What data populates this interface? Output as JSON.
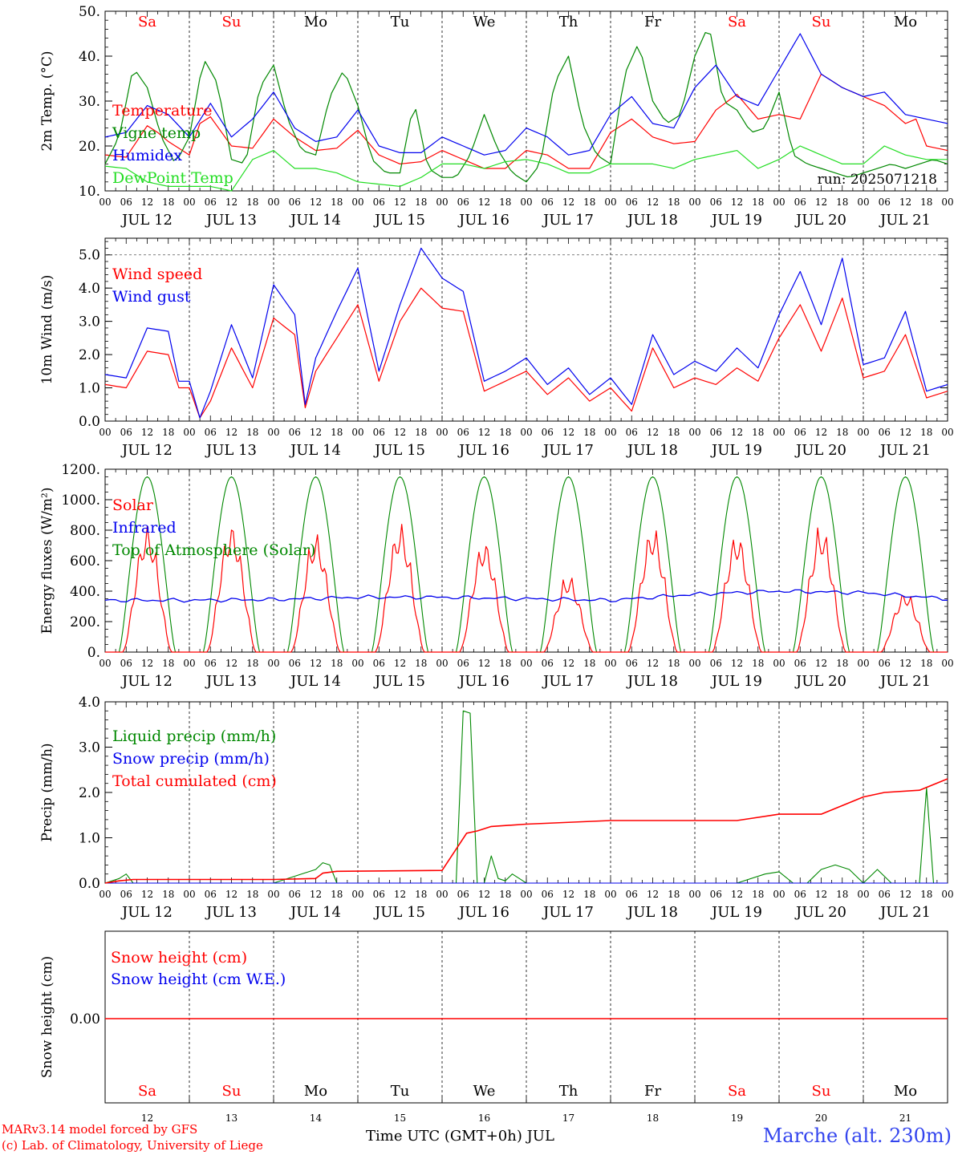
{
  "footer": {
    "credit1": "MARv3.14 model forced by GFS",
    "credit2": "(c) Lab. of Climatology, University of Liege",
    "xlabel": "Time UTC (GMT+0h) JUL",
    "location": "Marche (alt. 230m)"
  },
  "colors": {
    "red": "#ff0000",
    "green": "#008800",
    "blue": "#0000ee",
    "lime": "#22dd22",
    "location": "#3344ee"
  },
  "days": [
    {
      "abbr": "Sa",
      "date": "JUL 12",
      "num": "12",
      "weekend": true
    },
    {
      "abbr": "Su",
      "date": "JUL 13",
      "num": "13",
      "weekend": true
    },
    {
      "abbr": "Mo",
      "date": "JUL 14",
      "num": "14",
      "weekend": false
    },
    {
      "abbr": "Tu",
      "date": "JUL 15",
      "num": "15",
      "weekend": false
    },
    {
      "abbr": "We",
      "date": "JUL 16",
      "num": "16",
      "weekend": false
    },
    {
      "abbr": "Th",
      "date": "JUL 17",
      "num": "17",
      "weekend": false
    },
    {
      "abbr": "Fr",
      "date": "JUL 18",
      "num": "18",
      "weekend": false
    },
    {
      "abbr": "Sa",
      "date": "JUL 19",
      "num": "19",
      "weekend": true
    },
    {
      "abbr": "Su",
      "date": "JUL 20",
      "num": "20",
      "weekend": true
    },
    {
      "abbr": "Mo",
      "date": "JUL 21",
      "num": "21",
      "weekend": false
    }
  ],
  "hour_labels": [
    "00",
    "06",
    "12",
    "18"
  ],
  "chart_data": [
    {
      "type": "line",
      "ylabel": "2m Temp. (°C)",
      "ylim": [
        10,
        50
      ],
      "yticks": [
        "10.",
        "20.",
        "30.",
        "40.",
        "50."
      ],
      "annotation": "run: 2025071218",
      "x_unit": "hours since JUL 12 00 UTC",
      "series": [
        {
          "name": "Temperature",
          "color": "red",
          "x": [
            0,
            6,
            12,
            15,
            18,
            24,
            27,
            30,
            36,
            42,
            48,
            54,
            60,
            66,
            72,
            78,
            84,
            90,
            96,
            102,
            108,
            114,
            120,
            126,
            132,
            138,
            144,
            150,
            156,
            162,
            168,
            174,
            180,
            186,
            192,
            198,
            204,
            210,
            216,
            222,
            228,
            231,
            234,
            240
          ],
          "y": [
            18,
            17.5,
            24.5,
            23,
            21,
            18,
            25,
            26.5,
            20,
            19.5,
            26,
            22,
            19,
            19.5,
            23.5,
            18,
            16,
            16.5,
            19,
            17,
            15,
            15,
            19,
            18,
            15,
            15,
            23,
            26,
            22,
            20.5,
            21,
            28,
            31.5,
            26,
            27,
            26,
            36,
            33,
            31,
            29,
            25,
            26,
            20,
            19
          ]
        },
        {
          "name": "Vigne temp",
          "color": "green",
          "x": [
            0,
            4,
            8,
            12,
            16,
            20,
            24,
            28,
            32,
            36,
            40,
            44,
            48,
            52,
            56,
            60,
            64,
            68,
            72,
            76,
            80,
            84,
            88,
            92,
            96,
            100,
            104,
            108,
            112,
            116,
            120,
            124,
            128,
            132,
            136,
            140,
            144,
            148,
            152,
            156,
            160,
            164,
            168,
            172,
            176,
            180,
            184,
            188,
            192,
            196,
            200,
            204,
            208,
            212,
            216,
            220,
            224,
            228,
            232,
            236,
            240
          ],
          "y": [
            16,
            22,
            37.5,
            33,
            22,
            16,
            22,
            39.5,
            34,
            17,
            16,
            33,
            38,
            26,
            19,
            18,
            31,
            37,
            29,
            17,
            14,
            14,
            30,
            15,
            13,
            13,
            18,
            27,
            19,
            14,
            12,
            16,
            34,
            40,
            25,
            18,
            16,
            36,
            43,
            30,
            25,
            27,
            40,
            47,
            30,
            28,
            23,
            24,
            32,
            18,
            16,
            15,
            14,
            13,
            14,
            15,
            16,
            15,
            16,
            17,
            16
          ]
        },
        {
          "name": "Humidex",
          "color": "blue",
          "x": [
            0,
            6,
            12,
            18,
            24,
            30,
            36,
            42,
            48,
            54,
            60,
            66,
            72,
            78,
            84,
            90,
            96,
            102,
            108,
            114,
            120,
            126,
            132,
            138,
            144,
            150,
            156,
            162,
            168,
            174,
            180,
            186,
            192,
            198,
            204,
            210,
            216,
            222,
            228,
            234,
            240
          ],
          "y": [
            22,
            23,
            29,
            27,
            22,
            29.5,
            22,
            26,
            32,
            24,
            21,
            22,
            28,
            20,
            18.5,
            18.5,
            22,
            20,
            18,
            19,
            24,
            22,
            18,
            19,
            27,
            31,
            25,
            24,
            33,
            38,
            31,
            29,
            37,
            45,
            36,
            33,
            31,
            32,
            27,
            26,
            25
          ]
        },
        {
          "name": "DewPoint Temp",
          "color": "lime",
          "x": [
            0,
            6,
            12,
            18,
            24,
            30,
            36,
            42,
            48,
            54,
            60,
            66,
            72,
            78,
            84,
            90,
            96,
            102,
            108,
            114,
            120,
            126,
            132,
            138,
            144,
            150,
            156,
            162,
            168,
            174,
            180,
            186,
            192,
            198,
            204,
            210,
            216,
            222,
            228,
            234,
            240
          ],
          "y": [
            15.5,
            15,
            12,
            11,
            11,
            11,
            10,
            17,
            19,
            15,
            15,
            14,
            12,
            11.5,
            11,
            13,
            16,
            16,
            15,
            16.5,
            17,
            16,
            14,
            14,
            16,
            16,
            16,
            15,
            17,
            18,
            19,
            15,
            17,
            20,
            18,
            16,
            16,
            20,
            18,
            17,
            17
          ]
        }
      ]
    },
    {
      "type": "line",
      "ylabel": "10m Wind (m/s)",
      "ylim": [
        0,
        5.5
      ],
      "yticks": [
        "0.0",
        "1.0",
        "2.0",
        "3.0",
        "4.0",
        "5.0"
      ],
      "series": [
        {
          "name": "Wind speed",
          "color": "red",
          "x": [
            0,
            6,
            12,
            18,
            21,
            24,
            27,
            30,
            36,
            42,
            48,
            54,
            57,
            60,
            66,
            72,
            78,
            84,
            90,
            96,
            102,
            108,
            114,
            120,
            126,
            132,
            138,
            144,
            150,
            156,
            162,
            168,
            174,
            180,
            186,
            192,
            198,
            204,
            210,
            216,
            222,
            228,
            234,
            240
          ],
          "y": [
            1.1,
            1.0,
            2.1,
            2.0,
            1.0,
            1.0,
            0.1,
            0.6,
            2.2,
            1.0,
            3.1,
            2.6,
            0.4,
            1.5,
            2.5,
            3.5,
            1.2,
            3.0,
            4.0,
            3.4,
            3.3,
            0.9,
            1.2,
            1.5,
            0.8,
            1.3,
            0.6,
            1.0,
            0.3,
            2.2,
            1.0,
            1.3,
            1.1,
            1.6,
            1.2,
            2.5,
            3.5,
            2.1,
            3.7,
            1.3,
            1.5,
            2.6,
            0.7,
            0.9
          ]
        },
        {
          "name": "Wind gust",
          "color": "blue",
          "x": [
            0,
            6,
            12,
            18,
            21,
            24,
            27,
            30,
            36,
            42,
            48,
            54,
            57,
            60,
            66,
            72,
            78,
            84,
            90,
            96,
            102,
            108,
            114,
            120,
            126,
            132,
            138,
            144,
            150,
            156,
            162,
            168,
            174,
            180,
            186,
            192,
            198,
            204,
            210,
            216,
            222,
            228,
            234,
            240
          ],
          "y": [
            1.4,
            1.3,
            2.8,
            2.7,
            1.2,
            1.2,
            0.1,
            0.9,
            2.9,
            1.3,
            4.1,
            3.2,
            0.5,
            1.9,
            3.3,
            4.6,
            1.5,
            3.5,
            5.2,
            4.3,
            3.9,
            1.2,
            1.5,
            1.9,
            1.1,
            1.6,
            0.8,
            1.3,
            0.5,
            2.6,
            1.4,
            1.8,
            1.5,
            2.2,
            1.6,
            3.2,
            4.5,
            2.9,
            4.9,
            1.7,
            1.9,
            3.3,
            0.9,
            1.1
          ]
        }
      ]
    },
    {
      "type": "line",
      "ylabel": "Energy fluxes (W/m²)",
      "ylim": [
        0,
        1200
      ],
      "yticks": [
        "0.",
        "200.",
        "400.",
        "600.",
        "800.",
        "1000.",
        "1200."
      ],
      "series": [
        {
          "name": "Solar",
          "color": "red",
          "peaks": [
            850,
            870,
            800,
            870,
            760,
            520,
            850,
            810,
            850,
            410
          ]
        },
        {
          "name": "Infrared",
          "color": "blue",
          "x": [
            0,
            24,
            48,
            72,
            96,
            120,
            144,
            168,
            192,
            216,
            240
          ],
          "y": [
            340,
            340,
            345,
            360,
            360,
            350,
            340,
            380,
            400,
            390,
            350
          ]
        },
        {
          "name": "Top of Atmosphere (Solar)",
          "color": "green",
          "peak": 1150
        }
      ]
    },
    {
      "type": "line",
      "ylabel": "Precip (mm/h)",
      "ylim": [
        0,
        4
      ],
      "yticks": [
        "0.0",
        "1.0",
        "2.0",
        "3.0",
        "4.0"
      ],
      "series": [
        {
          "name": "Liquid precip (mm/h)",
          "color": "green",
          "x": [
            0,
            4,
            6,
            8,
            10,
            24,
            48,
            60,
            62,
            64,
            66,
            96,
            100,
            102,
            104,
            106,
            108,
            110,
            112,
            114,
            116,
            118,
            120,
            144,
            180,
            188,
            192,
            196,
            200,
            204,
            208,
            212,
            216,
            220,
            224,
            232,
            234,
            236,
            240
          ],
          "y": [
            0,
            0.1,
            0.2,
            0,
            0,
            0,
            0,
            0.3,
            0.45,
            0.4,
            0,
            0,
            0,
            3.8,
            3.75,
            0,
            0,
            0.6,
            0.1,
            0.05,
            0.2,
            0.1,
            0,
            0,
            0,
            0.2,
            0.25,
            0,
            0,
            0.3,
            0.4,
            0.3,
            0,
            0.3,
            0,
            0,
            2.1,
            0,
            0
          ]
        },
        {
          "name": "Snow precip (mm/h)",
          "color": "blue",
          "x": [
            0,
            240
          ],
          "y": [
            0,
            0
          ]
        },
        {
          "name": "Total cumulated (cm)",
          "color": "red",
          "x": [
            0,
            4,
            8,
            24,
            48,
            60,
            62,
            66,
            96,
            103,
            106,
            110,
            120,
            144,
            180,
            192,
            204,
            216,
            222,
            232,
            240
          ],
          "y": [
            0,
            0.05,
            0.08,
            0.08,
            0.08,
            0.1,
            0.22,
            0.26,
            0.28,
            1.1,
            1.15,
            1.25,
            1.3,
            1.38,
            1.38,
            1.52,
            1.52,
            1.9,
            2.0,
            2.05,
            2.3
          ]
        }
      ]
    },
    {
      "type": "line",
      "ylabel": "Snow height (cm)",
      "yticks": [
        "0.00"
      ],
      "series": [
        {
          "name": "Snow height (cm)",
          "color": "red",
          "x": [
            0,
            240
          ],
          "y": [
            0,
            0
          ]
        },
        {
          "name": "Snow height (cm W.E.)",
          "color": "blue",
          "x": [
            0,
            240
          ],
          "y": [
            0,
            0
          ]
        }
      ]
    }
  ]
}
